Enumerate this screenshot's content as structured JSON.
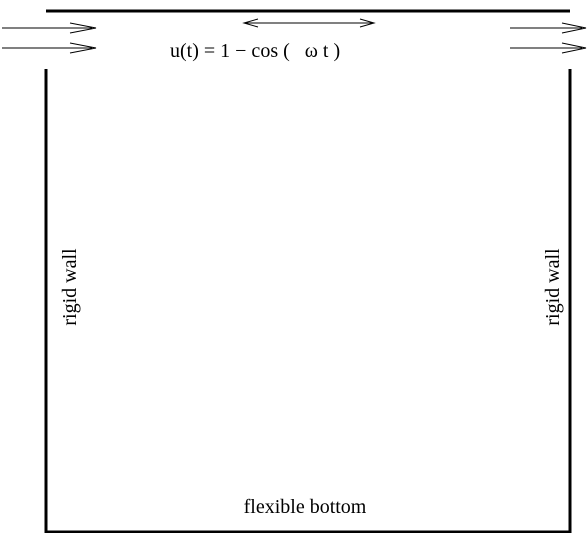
{
  "lid_velocity_label": "u(t) = 1 − cos (   ω t )",
  "left_wall_label": "rigid wall",
  "right_wall_label": "rigid wall",
  "bottom_label": "flexible bottom",
  "colors": {
    "line": "#000000",
    "background": "#ffffff"
  }
}
